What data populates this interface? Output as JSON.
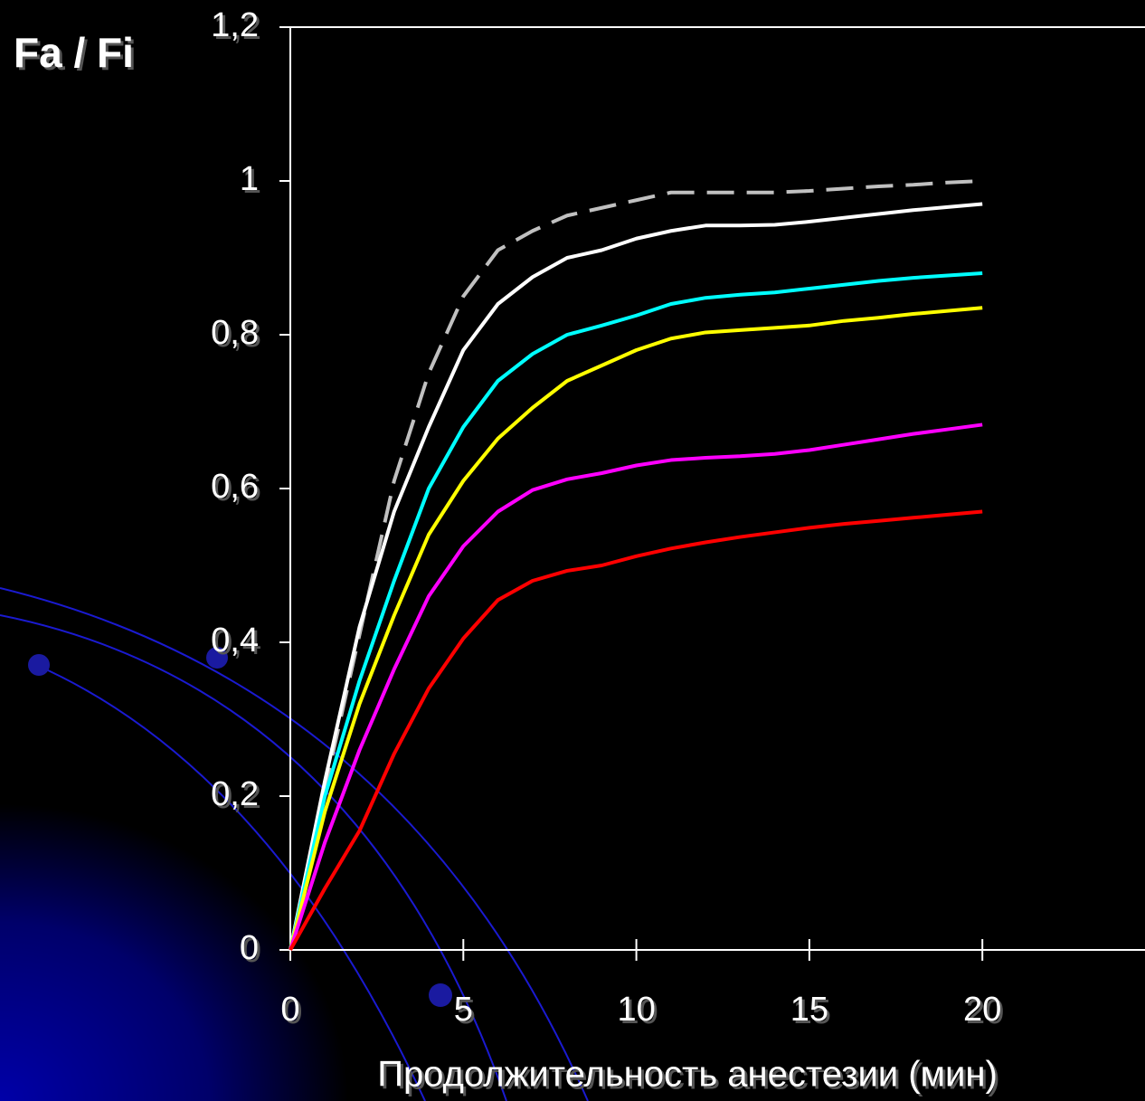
{
  "chart_data": {
    "type": "line",
    "y_label": "Fa / Fi",
    "x_label": "Продолжительность анестезии (мин)",
    "x": [
      0,
      1,
      2,
      3,
      4,
      5,
      6,
      7,
      8,
      9,
      10,
      11,
      12,
      13,
      14,
      15,
      16,
      17,
      18,
      19,
      20
    ],
    "series": [
      {
        "color": "#c0c0c0",
        "dash": true,
        "values": [
          0,
          0.21,
          0.41,
          0.61,
          0.75,
          0.85,
          0.91,
          0.935,
          0.955,
          0.965,
          0.975,
          0.985,
          0.985,
          0.985,
          0.985,
          0.987,
          0.99,
          0.993,
          0.995,
          0.998,
          1.0
        ]
      },
      {
        "color": "#ffffff",
        "dash": false,
        "values": [
          0,
          0.22,
          0.42,
          0.57,
          0.68,
          0.78,
          0.84,
          0.875,
          0.9,
          0.91,
          0.925,
          0.935,
          0.942,
          0.942,
          0.943,
          0.947,
          0.952,
          0.957,
          0.962,
          0.966,
          0.97
        ]
      },
      {
        "color": "#00ffff",
        "dash": false,
        "values": [
          0,
          0.2,
          0.35,
          0.48,
          0.6,
          0.68,
          0.74,
          0.775,
          0.8,
          0.812,
          0.825,
          0.84,
          0.848,
          0.852,
          0.855,
          0.86,
          0.865,
          0.87,
          0.874,
          0.877,
          0.88
        ]
      },
      {
        "color": "#ffff00",
        "dash": false,
        "values": [
          0,
          0.18,
          0.32,
          0.435,
          0.54,
          0.61,
          0.665,
          0.705,
          0.74,
          0.76,
          0.78,
          0.795,
          0.803,
          0.806,
          0.809,
          0.812,
          0.818,
          0.822,
          0.827,
          0.831,
          0.835
        ]
      },
      {
        "color": "#ff00ff",
        "dash": false,
        "values": [
          0,
          0.14,
          0.26,
          0.365,
          0.46,
          0.525,
          0.57,
          0.598,
          0.612,
          0.62,
          0.63,
          0.637,
          0.64,
          0.642,
          0.645,
          0.65,
          0.657,
          0.664,
          0.671,
          0.677,
          0.683
        ]
      },
      {
        "color": "#ff0000",
        "dash": false,
        "values": [
          0,
          0.08,
          0.155,
          0.255,
          0.34,
          0.405,
          0.455,
          0.48,
          0.493,
          0.5,
          0.512,
          0.522,
          0.53,
          0.537,
          0.543,
          0.549,
          0.554,
          0.558,
          0.562,
          0.566,
          0.57
        ]
      }
    ],
    "xlim": [
      0,
      24.7
    ],
    "xticks": [
      0,
      5,
      10,
      15,
      20
    ],
    "ylim": [
      0,
      1.2
    ],
    "yticks": [
      0,
      {
        "value": 0.2,
        "label": "0,2"
      },
      {
        "value": 0.4,
        "label": "0,4"
      },
      {
        "value": 0.6,
        "label": "0,6"
      },
      {
        "value": 0.8,
        "label": "0,8"
      },
      1,
      {
        "value": 1.2,
        "label": "1,2"
      }
    ]
  }
}
